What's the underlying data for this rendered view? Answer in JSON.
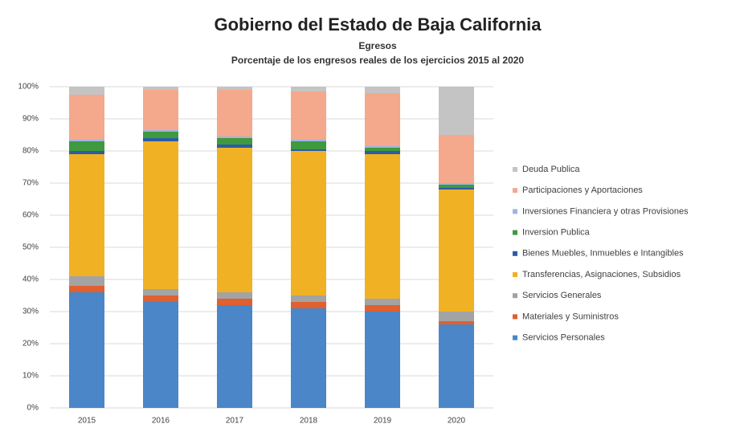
{
  "chart_data": {
    "type": "stacked_bar",
    "title": "Gobierno del Estado de Baja California",
    "subtitle": "Egresos",
    "subtitle2": "Porcentaje de los engresos reales de los ejercicios 2015 al  2020",
    "categories": [
      "2015",
      "2016",
      "2017",
      "2018",
      "2019",
      "2020"
    ],
    "series": [
      {
        "name": "Servicios Personales",
        "color": "#4a86c8",
        "values": [
          36,
          33,
          32,
          31,
          30,
          26
        ]
      },
      {
        "name": "Materiales y Suministros",
        "color": "#e0602f",
        "values": [
          2,
          2,
          2,
          2,
          2,
          1
        ]
      },
      {
        "name": "Servicios Generales",
        "color": "#a3a3a3",
        "values": [
          3,
          2,
          2,
          2,
          2,
          3
        ]
      },
      {
        "name": "Transferencias, Asignaciones, Subsidios",
        "color": "#f0b224",
        "values": [
          38,
          46,
          45,
          45,
          45,
          38
        ]
      },
      {
        "name": "Bienes Muebles, Inmuebles e Intangibles",
        "color": "#2d5ba6",
        "values": [
          1,
          1,
          1,
          0.5,
          1,
          0.5
        ]
      },
      {
        "name": "Inversion Publica",
        "color": "#3f9a3f",
        "values": [
          3,
          2,
          2,
          2.5,
          1,
          1
        ]
      },
      {
        "name": "Inversiones Financiera y otras Provisiones",
        "color": "#9db5e2",
        "values": [
          0.5,
          0.5,
          0.5,
          0.5,
          0.5,
          0.5
        ]
      },
      {
        "name": "Participaciones y Aportaciones",
        "color": "#f4a88c",
        "values": [
          14,
          12.5,
          14.5,
          15,
          16.5,
          15
        ]
      },
      {
        "name": "Deuda Publica",
        "color": "#c4c4c4",
        "values": [
          2.5,
          1,
          1,
          1.5,
          2,
          15
        ]
      }
    ],
    "ylim": [
      0,
      100
    ],
    "yticks": [
      {
        "value": 0,
        "label": "0%"
      },
      {
        "value": 10,
        "label": "10%"
      },
      {
        "value": 20,
        "label": "20%"
      },
      {
        "value": 30,
        "label": "30%"
      },
      {
        "value": 40,
        "label": "40%"
      },
      {
        "value": 50,
        "label": "50%"
      },
      {
        "value": 60,
        "label": "60%"
      },
      {
        "value": 70,
        "label": "70%"
      },
      {
        "value": 80,
        "label": "80%"
      },
      {
        "value": 90,
        "label": "90%"
      },
      {
        "value": 100,
        "label": "100%"
      }
    ],
    "grid": true,
    "legend": "right"
  }
}
